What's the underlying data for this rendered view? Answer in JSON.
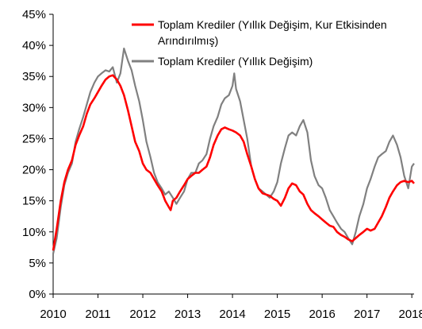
{
  "chart_data": {
    "type": "line",
    "title": "",
    "xlabel": "",
    "ylabel": "",
    "ylim": [
      0,
      45
    ],
    "xlim": [
      2010,
      2018.05
    ],
    "y_ticks": [
      0,
      5,
      10,
      15,
      20,
      25,
      30,
      35,
      40,
      45
    ],
    "y_tick_labels": [
      "0%",
      "5%",
      "10%",
      "15%",
      "20%",
      "25%",
      "30%",
      "35%",
      "40%",
      "45%"
    ],
    "x_ticks": [
      2010,
      2011,
      2012,
      2013,
      2014,
      2015,
      2016,
      2017,
      2018
    ],
    "x_tick_labels": [
      "2010",
      "2011",
      "2012",
      "2013",
      "2014",
      "2015",
      "2016",
      "2017",
      "2018"
    ],
    "grid": false,
    "legend_position": "top-right",
    "series": [
      {
        "name_lines": [
          "Toplam Krediler (Yıllık Değişim, Kur Etkisinden",
          "Arındırılmış)"
        ],
        "color": "#ff0000",
        "x": [
          2010.0,
          2010.08,
          2010.17,
          2010.25,
          2010.33,
          2010.42,
          2010.5,
          2010.58,
          2010.67,
          2010.75,
          2010.83,
          2010.92,
          2011.0,
          2011.08,
          2011.17,
          2011.25,
          2011.33,
          2011.42,
          2011.5,
          2011.58,
          2011.67,
          2011.75,
          2011.83,
          2011.92,
          2012.0,
          2012.08,
          2012.17,
          2012.25,
          2012.33,
          2012.42,
          2012.5,
          2012.58,
          2012.62,
          2012.67,
          2012.75,
          2012.83,
          2012.92,
          2013.0,
          2013.08,
          2013.17,
          2013.25,
          2013.33,
          2013.42,
          2013.5,
          2013.58,
          2013.67,
          2013.75,
          2013.83,
          2013.92,
          2014.0,
          2014.08,
          2014.17,
          2014.25,
          2014.33,
          2014.42,
          2014.5,
          2014.58,
          2014.67,
          2014.75,
          2014.83,
          2014.92,
          2015.0,
          2015.08,
          2015.17,
          2015.25,
          2015.33,
          2015.42,
          2015.5,
          2015.58,
          2015.67,
          2015.75,
          2015.83,
          2015.92,
          2016.0,
          2016.08,
          2016.17,
          2016.25,
          2016.33,
          2016.42,
          2016.5,
          2016.58,
          2016.67,
          2016.75,
          2016.83,
          2016.92,
          2017.0,
          2017.08,
          2017.17,
          2017.25,
          2017.33,
          2017.42,
          2017.5,
          2017.58,
          2017.67,
          2017.75,
          2017.83,
          2017.92,
          2018.0,
          2018.05
        ],
        "values": [
          7.0,
          10.5,
          15.0,
          18.0,
          20.0,
          21.5,
          24.0,
          25.5,
          27.0,
          29.0,
          30.5,
          31.5,
          32.5,
          33.5,
          34.5,
          35.0,
          35.2,
          34.5,
          33.5,
          32.0,
          29.5,
          27.0,
          24.5,
          23.0,
          21.0,
          20.0,
          19.5,
          18.5,
          17.5,
          16.5,
          15.0,
          14.0,
          13.5,
          15.0,
          15.5,
          16.5,
          17.5,
          18.5,
          19.0,
          19.5,
          19.5,
          20.0,
          20.5,
          22.0,
          24.0,
          25.5,
          26.5,
          26.8,
          26.5,
          26.3,
          26.0,
          25.5,
          24.5,
          22.5,
          20.5,
          18.5,
          17.0,
          16.2,
          16.0,
          15.8,
          15.3,
          15.0,
          14.2,
          15.5,
          17.0,
          17.8,
          17.5,
          16.5,
          16.0,
          14.5,
          13.5,
          13.0,
          12.5,
          12.0,
          11.5,
          11.0,
          10.8,
          10.0,
          9.5,
          9.2,
          8.8,
          8.5,
          9.0,
          9.5,
          10.0,
          10.5,
          10.2,
          10.5,
          11.5,
          12.5,
          14.0,
          15.5,
          16.5,
          17.5,
          18.0,
          18.2,
          18.0,
          18.2,
          17.8
        ]
      },
      {
        "name": "Toplam Krediler (Yıllık Değişim)",
        "color": "#808080",
        "x": [
          2010.0,
          2010.08,
          2010.17,
          2010.25,
          2010.33,
          2010.42,
          2010.5,
          2010.58,
          2010.67,
          2010.75,
          2010.83,
          2010.92,
          2011.0,
          2011.08,
          2011.17,
          2011.25,
          2011.33,
          2011.42,
          2011.5,
          2011.58,
          2011.67,
          2011.75,
          2011.83,
          2011.92,
          2012.0,
          2012.08,
          2012.17,
          2012.25,
          2012.33,
          2012.42,
          2012.5,
          2012.58,
          2012.67,
          2012.75,
          2012.83,
          2012.92,
          2013.0,
          2013.08,
          2013.17,
          2013.25,
          2013.33,
          2013.42,
          2013.5,
          2013.58,
          2013.67,
          2013.75,
          2013.83,
          2013.92,
          2014.0,
          2014.04,
          2014.08,
          2014.17,
          2014.25,
          2014.33,
          2014.42,
          2014.5,
          2014.58,
          2014.67,
          2014.75,
          2014.83,
          2014.92,
          2015.0,
          2015.08,
          2015.17,
          2015.25,
          2015.33,
          2015.42,
          2015.5,
          2015.58,
          2015.67,
          2015.75,
          2015.83,
          2015.92,
          2016.0,
          2016.08,
          2016.17,
          2016.25,
          2016.33,
          2016.42,
          2016.5,
          2016.58,
          2016.67,
          2016.75,
          2016.83,
          2016.92,
          2017.0,
          2017.08,
          2017.17,
          2017.25,
          2017.33,
          2017.42,
          2017.5,
          2017.58,
          2017.67,
          2017.75,
          2017.83,
          2017.92,
          2018.0,
          2018.05
        ],
        "values": [
          6.5,
          9.0,
          14.0,
          17.5,
          19.5,
          21.0,
          24.5,
          26.5,
          28.5,
          30.5,
          32.5,
          34.0,
          35.0,
          35.5,
          36.0,
          35.8,
          36.5,
          34.0,
          35.5,
          39.5,
          37.5,
          36.0,
          33.5,
          31.0,
          28.0,
          24.5,
          22.0,
          19.5,
          18.0,
          17.0,
          16.0,
          16.5,
          15.5,
          14.5,
          15.5,
          16.5,
          18.5,
          19.5,
          19.5,
          21.0,
          21.5,
          22.5,
          25.0,
          27.0,
          28.5,
          30.5,
          31.5,
          32.0,
          33.5,
          35.5,
          33.0,
          31.0,
          28.0,
          25.0,
          20.5,
          18.5,
          17.0,
          16.5,
          16.0,
          15.5,
          16.5,
          18.0,
          21.0,
          23.5,
          25.5,
          26.0,
          25.5,
          27.0,
          28.0,
          26.0,
          21.5,
          19.0,
          17.5,
          17.0,
          15.5,
          13.5,
          12.5,
          11.5,
          10.5,
          10.0,
          9.0,
          8.0,
          10.0,
          12.5,
          14.5,
          17.0,
          18.5,
          20.5,
          22.0,
          22.5,
          23.0,
          24.5,
          25.5,
          24.0,
          22.0,
          19.0,
          17.0,
          20.5,
          21.0
        ]
      }
    ]
  }
}
